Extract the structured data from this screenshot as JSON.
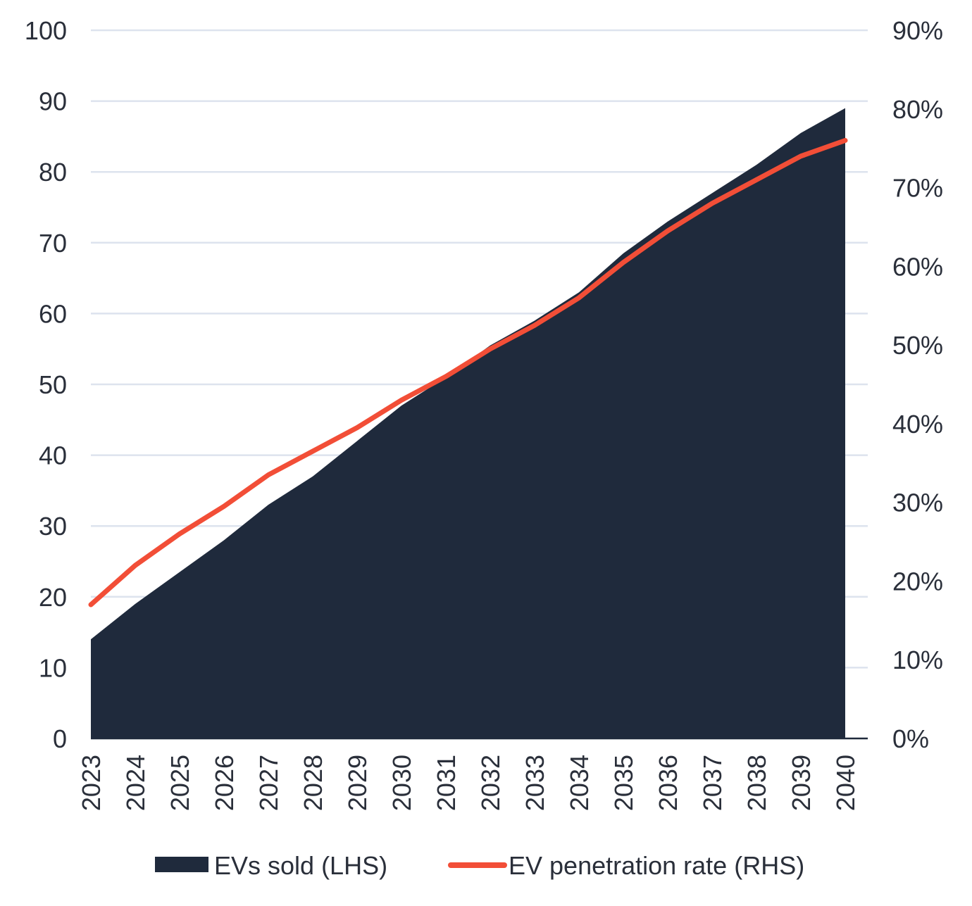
{
  "chart_data": {
    "type": "area+line",
    "categories": [
      "2023",
      "2024",
      "2025",
      "2026",
      "2027",
      "2028",
      "2029",
      "2030",
      "2031",
      "2032",
      "2033",
      "2034",
      "2035",
      "2036",
      "2037",
      "2038",
      "2039",
      "2040"
    ],
    "series": [
      {
        "name": "EVs sold (LHS)",
        "type": "area",
        "axis": "left",
        "color": "#1f2a3c",
        "values": [
          14,
          19,
          23.5,
          28,
          33,
          37,
          42,
          47,
          51,
          55.5,
          59,
          63,
          68.5,
          73,
          77,
          81,
          85.5,
          89
        ]
      },
      {
        "name": "EV penetration rate (RHS)",
        "type": "line",
        "axis": "right",
        "color": "#f24e37",
        "values": [
          0.17,
          0.22,
          0.26,
          0.295,
          0.335,
          0.365,
          0.395,
          0.43,
          0.46,
          0.495,
          0.525,
          0.56,
          0.605,
          0.645,
          0.68,
          0.71,
          0.74,
          0.76
        ]
      }
    ],
    "left_axis": {
      "ylim": [
        0,
        100
      ],
      "ticks": [
        0,
        10,
        20,
        30,
        40,
        50,
        60,
        70,
        80,
        90,
        100
      ],
      "tick_labels": [
        "0",
        "10",
        "20",
        "30",
        "40",
        "50",
        "60",
        "70",
        "80",
        "90",
        "100"
      ]
    },
    "right_axis": {
      "ylim": [
        0,
        0.9
      ],
      "ticks": [
        0,
        0.1,
        0.2,
        0.3,
        0.4,
        0.5,
        0.6,
        0.7,
        0.8,
        0.9
      ],
      "tick_labels": [
        "0%",
        "10%",
        "20%",
        "30%",
        "40%",
        "50%",
        "60%",
        "70%",
        "80%",
        "90%"
      ]
    },
    "grid": true,
    "gridline_color": "#dde3ee",
    "legend_position": "bottom"
  }
}
